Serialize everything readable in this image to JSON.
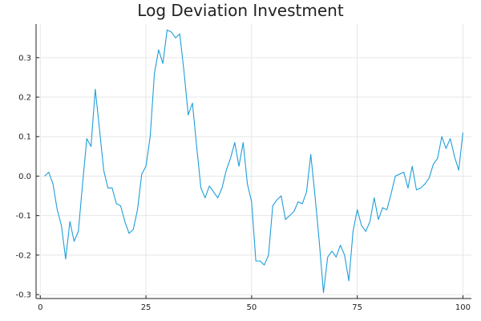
{
  "chart_data": {
    "type": "line",
    "title": "Log Deviation Investment",
    "xlabel": "",
    "ylabel": "",
    "xlim": [
      -1,
      102
    ],
    "ylim": [
      -0.31,
      0.385
    ],
    "x_ticks": [
      0,
      25,
      50,
      75,
      100
    ],
    "y_ticks": [
      -0.3,
      -0.2,
      -0.1,
      0.0,
      0.1,
      0.2,
      0.3
    ],
    "x_tick_labels": [
      "0",
      "25",
      "50",
      "75",
      "100"
    ],
    "y_tick_labels": [
      "-0.3",
      "-0.2",
      "-0.1",
      "0.0",
      "0.1",
      "0.2",
      "0.3"
    ],
    "grid": true,
    "legend": "none",
    "color": "#1f9ed9",
    "series": [
      {
        "x": [
          1,
          2,
          3,
          4,
          5,
          6,
          7,
          8,
          9,
          10,
          11,
          12,
          13,
          14,
          15,
          16,
          17,
          18,
          19,
          20,
          21,
          22,
          23,
          24,
          25,
          26,
          27,
          28,
          29,
          30,
          31,
          32,
          33,
          34,
          35,
          36,
          37,
          38,
          39,
          40,
          41,
          42,
          43,
          44,
          45,
          46,
          47,
          48,
          49,
          50,
          51,
          52,
          53,
          54,
          55,
          56,
          57,
          58,
          59,
          60,
          61,
          62,
          63,
          64,
          65,
          66,
          67,
          68,
          69,
          70,
          71,
          72,
          73,
          74,
          75,
          76,
          77,
          78,
          79,
          80,
          81,
          82,
          83,
          84,
          85,
          86,
          87,
          88,
          89,
          90,
          91,
          92,
          93,
          94,
          95,
          96,
          97,
          98,
          99,
          100
        ],
        "values": [
          0.0,
          0.01,
          -0.02,
          -0.085,
          -0.125,
          -0.21,
          -0.115,
          -0.165,
          -0.14,
          -0.02,
          0.095,
          0.075,
          0.22,
          0.12,
          0.015,
          -0.03,
          -0.03,
          -0.07,
          -0.075,
          -0.115,
          -0.145,
          -0.135,
          -0.085,
          0.005,
          0.025,
          0.1,
          0.26,
          0.32,
          0.285,
          0.37,
          0.365,
          0.35,
          0.36,
          0.265,
          0.155,
          0.185,
          0.075,
          -0.03,
          -0.055,
          -0.025,
          -0.04,
          -0.055,
          -0.03,
          0.015,
          0.045,
          0.085,
          0.025,
          0.085,
          -0.02,
          -0.065,
          -0.215,
          -0.215,
          -0.225,
          -0.2,
          -0.075,
          -0.06,
          -0.05,
          -0.11,
          -0.1,
          -0.09,
          -0.065,
          -0.07,
          -0.04,
          0.055,
          -0.05,
          -0.165,
          -0.295,
          -0.205,
          -0.19,
          -0.205,
          -0.175,
          -0.2,
          -0.265,
          -0.14,
          -0.085,
          -0.125,
          -0.14,
          -0.115,
          -0.055,
          -0.11,
          -0.08,
          -0.085,
          -0.045,
          0.0,
          0.005,
          0.01,
          -0.03,
          0.025,
          -0.035,
          -0.03,
          -0.02,
          -0.005,
          0.03,
          0.045,
          0.1,
          0.07,
          0.095,
          0.05,
          0.015,
          0.11
        ]
      }
    ]
  }
}
